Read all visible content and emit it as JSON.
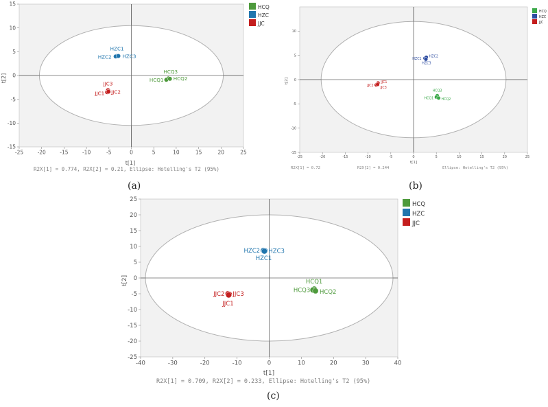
{
  "colors": {
    "HCQ": "#4e9a3c",
    "HZC": "#2176ae",
    "JJC": "#c41e1e",
    "HZC_b": "#2c4ba0",
    "HCQ_b": "#3caa4a",
    "plot_bg": "#f2f2f2",
    "axis": "#6a6a6a",
    "ellipse": "#b0b0b0"
  },
  "chart_data": [
    {
      "id": "a",
      "type": "scatter",
      "caption": "(a)",
      "xlabel": "t[1]",
      "ylabel": "t[2]",
      "xlim": [
        -25,
        25
      ],
      "ylim": [
        -15,
        15
      ],
      "xticks": [
        -25,
        -20,
        -15,
        -10,
        -5,
        0,
        5,
        10,
        15,
        20,
        25
      ],
      "yticks": [
        -15,
        -10,
        -5,
        0,
        5,
        10,
        15
      ],
      "ellipse": {
        "cx": 0,
        "cy": 0,
        "rx": 20.5,
        "ry": 10.5
      },
      "legend": [
        "HCQ",
        "HZC",
        "JJC"
      ],
      "footer": "R2X[1] = 0.774, R2X[2] = 0.21, Ellipse: Hotelling's T2 (95%)",
      "series": [
        {
          "name": "HZC",
          "points": [
            {
              "label": "HZC1",
              "x": -3.2,
              "y": 4.1
            },
            {
              "label": "HZC2",
              "x": -3.5,
              "y": 4.0
            },
            {
              "label": "HZC3",
              "x": -2.9,
              "y": 4.1
            }
          ]
        },
        {
          "name": "HCQ",
          "points": [
            {
              "label": "HCQ3",
              "x": 8.3,
              "y": -0.6
            },
            {
              "label": "HCQ1",
              "x": 7.8,
              "y": -0.9
            },
            {
              "label": "HCQ2",
              "x": 8.6,
              "y": -0.7
            }
          ]
        },
        {
          "name": "JJC",
          "points": [
            {
              "label": "JJC3",
              "x": -5.2,
              "y": -3.1
            },
            {
              "label": "JJC1",
              "x": -5.4,
              "y": -3.5
            },
            {
              "label": "JJC2",
              "x": -5.1,
              "y": -3.4
            }
          ]
        }
      ]
    },
    {
      "id": "b",
      "type": "scatter",
      "caption": "(b)",
      "xlabel": "t[1]",
      "ylabel": "t[2]",
      "xlim": [
        -25,
        25
      ],
      "ylim": [
        -15,
        15
      ],
      "xticks": [
        -25,
        -20,
        -15,
        -10,
        -5,
        0,
        5,
        10,
        15,
        20,
        25
      ],
      "yticks": [
        -15,
        -10,
        -5,
        0,
        5,
        10
      ],
      "ellipse": {
        "cx": 0,
        "cy": 0,
        "rx": 20.3,
        "ry": 12.0
      },
      "legend": [
        "HCQ",
        "HZC",
        "JJC"
      ],
      "footer_parts": [
        "R2X[1] = 0.72",
        "R2X[2] = 0.244",
        "Ellipse: Hotelling's T2 (95%)"
      ],
      "series": [
        {
          "name": "HZC",
          "points": [
            {
              "label": "HZC1",
              "x": 2.5,
              "y": 4.4
            },
            {
              "label": "HZC2",
              "x": 2.8,
              "y": 4.6
            },
            {
              "label": "HZC3",
              "x": 2.7,
              "y": 4.2
            }
          ]
        },
        {
          "name": "JJC",
          "points": [
            {
              "label": "JJC1",
              "x": -7.8,
              "y": -0.7
            },
            {
              "label": "JJC2",
              "x": -8.2,
              "y": -1.1
            },
            {
              "label": "JJC3",
              "x": -7.9,
              "y": -1.0
            }
          ]
        },
        {
          "name": "HCQ",
          "points": [
            {
              "label": "HCQ3",
              "x": 5.2,
              "y": -3.3
            },
            {
              "label": "HCQ1",
              "x": 5.0,
              "y": -3.6
            },
            {
              "label": "HCQ2",
              "x": 5.5,
              "y": -3.8
            }
          ]
        }
      ]
    },
    {
      "id": "c",
      "type": "scatter",
      "caption": "(c)",
      "xlabel": "t[1]",
      "ylabel": "t[2]",
      "xlim": [
        -40,
        40
      ],
      "ylim": [
        -25,
        25
      ],
      "xticks": [
        -40,
        -30,
        -20,
        -10,
        0,
        10,
        20,
        30,
        40
      ],
      "yticks": [
        -25,
        -20,
        -15,
        -10,
        -5,
        0,
        5,
        10,
        15,
        20,
        25
      ],
      "ellipse": {
        "cx": 0,
        "cy": 0,
        "rx": 38.5,
        "ry": 20.0
      },
      "legend": [
        "HCQ",
        "HZC",
        "JJC"
      ],
      "footer": "R2X[1] = 0.709, R2X[2] = 0.233, Ellipse: Hotelling's T2 (95%)",
      "series": [
        {
          "name": "HZC",
          "points": [
            {
              "label": "HZC2",
              "x": -1.8,
              "y": 8.7
            },
            {
              "label": "HZC3",
              "x": -1.3,
              "y": 8.6
            },
            {
              "label": "HZC1",
              "x": -1.5,
              "y": 8.5
            }
          ]
        },
        {
          "name": "JJC",
          "points": [
            {
              "label": "JJC2",
              "x": -12.8,
              "y": -5.0
            },
            {
              "label": "JJC3",
              "x": -12.4,
              "y": -5.2
            },
            {
              "label": "JJC1",
              "x": -12.6,
              "y": -5.4
            }
          ]
        },
        {
          "name": "HCQ",
          "points": [
            {
              "label": "HCQ1",
              "x": 14.0,
              "y": -3.5
            },
            {
              "label": "HCQ3",
              "x": 13.6,
              "y": -3.8
            },
            {
              "label": "HCQ2",
              "x": 14.4,
              "y": -4.1
            }
          ]
        }
      ]
    }
  ]
}
